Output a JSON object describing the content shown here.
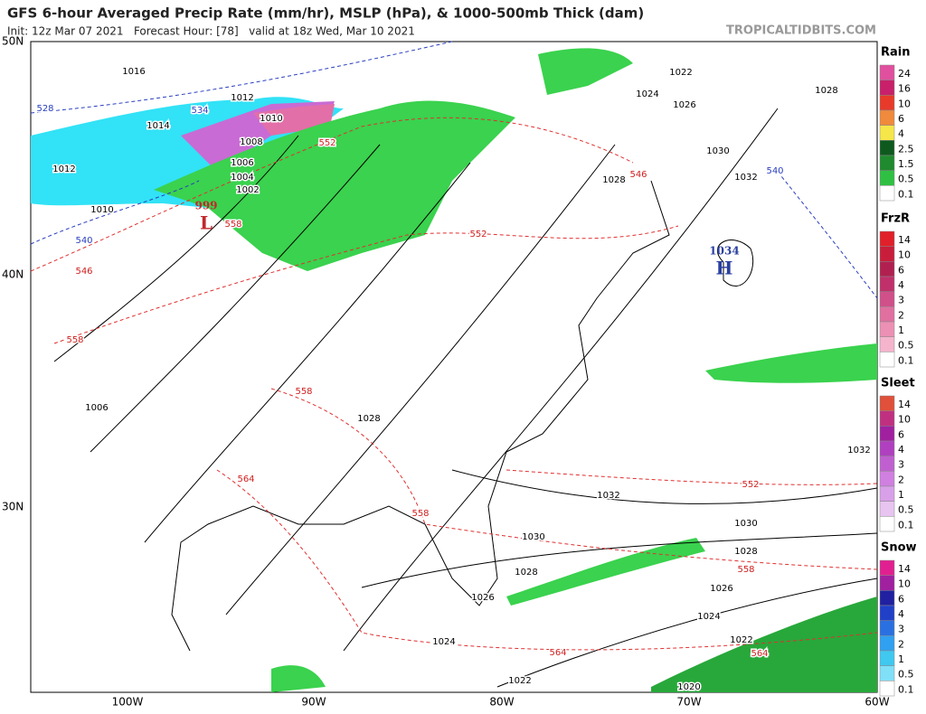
{
  "header": {
    "title": "GFS 6-hour Averaged Precip Rate (mm/hr), MSLP (hPa), & 1000-500mb Thick (dam)",
    "subtitle": "Init: 12z Mar 07 2021   Forecast Hour: [78]   valid at 18z Wed, Mar 10 2021",
    "site": "TROPICALTIDBITS.COM"
  },
  "map": {
    "lat_labels": [
      "50N",
      "40N",
      "30N"
    ],
    "lon_labels": [
      "100W",
      "90W",
      "80W",
      "70W",
      "60W"
    ],
    "isobar_labels": [
      "1016",
      "1012",
      "1014",
      "1010",
      "1008",
      "1006",
      "1004",
      "1002",
      "1012",
      "1010",
      "1006",
      "1028",
      "1022",
      "1024",
      "1026",
      "1028",
      "1030",
      "1032",
      "1028",
      "1032",
      "1032",
      "1030",
      "1030",
      "1028",
      "1028",
      "1026",
      "1026",
      "1024",
      "1024",
      "1022",
      "1022",
      "1020"
    ],
    "thickness_labels": [
      "528",
      "534",
      "540",
      "540",
      "546",
      "546",
      "552",
      "552",
      "552",
      "558",
      "558",
      "558",
      "558",
      "558",
      "564",
      "564",
      "564"
    ],
    "centers": [
      {
        "value": "999",
        "label": "L",
        "color": "#c0282d"
      },
      {
        "value": "1034",
        "label": "H",
        "color": "#2a3f9f"
      }
    ]
  },
  "legends": [
    {
      "title": "Rain",
      "labels": [
        "24",
        "16",
        "10",
        "6",
        "4",
        "2.5",
        "1.5",
        "0.5",
        "0.1"
      ],
      "colors": [
        "#e0509e",
        "#c8206a",
        "#e83a2a",
        "#f08a3c",
        "#f5e64a",
        "#0e5a1e",
        "#1f8a2e",
        "#2fc043",
        "#ffffff"
      ]
    },
    {
      "title": "FrzR",
      "labels": [
        "14",
        "10",
        "6",
        "4",
        "3",
        "2",
        "1",
        "0.5",
        "0.1"
      ],
      "colors": [
        "#e0202a",
        "#c81e3c",
        "#b02050",
        "#c0306a",
        "#d0508a",
        "#e070a0",
        "#ec90b4",
        "#f4b4cc",
        "#ffffff"
      ]
    },
    {
      "title": "Sleet",
      "labels": [
        "14",
        "10",
        "6",
        "4",
        "3",
        "2",
        "1",
        "0.5",
        "0.1"
      ],
      "colors": [
        "#e0503a",
        "#c03080",
        "#a020a0",
        "#b040c0",
        "#c060d0",
        "#d080e0",
        "#d8a0e8",
        "#e8c4f0",
        "#ffffff"
      ]
    },
    {
      "title": "Snow",
      "labels": [
        "14",
        "10",
        "6",
        "4",
        "3",
        "2",
        "1",
        "0.5",
        "0.1"
      ],
      "colors": [
        "#e02090",
        "#a020a0",
        "#2020a0",
        "#2040c8",
        "#2a70e0",
        "#30a0f0",
        "#40c8f0",
        "#80e0f8",
        "#ffffff"
      ]
    }
  ]
}
